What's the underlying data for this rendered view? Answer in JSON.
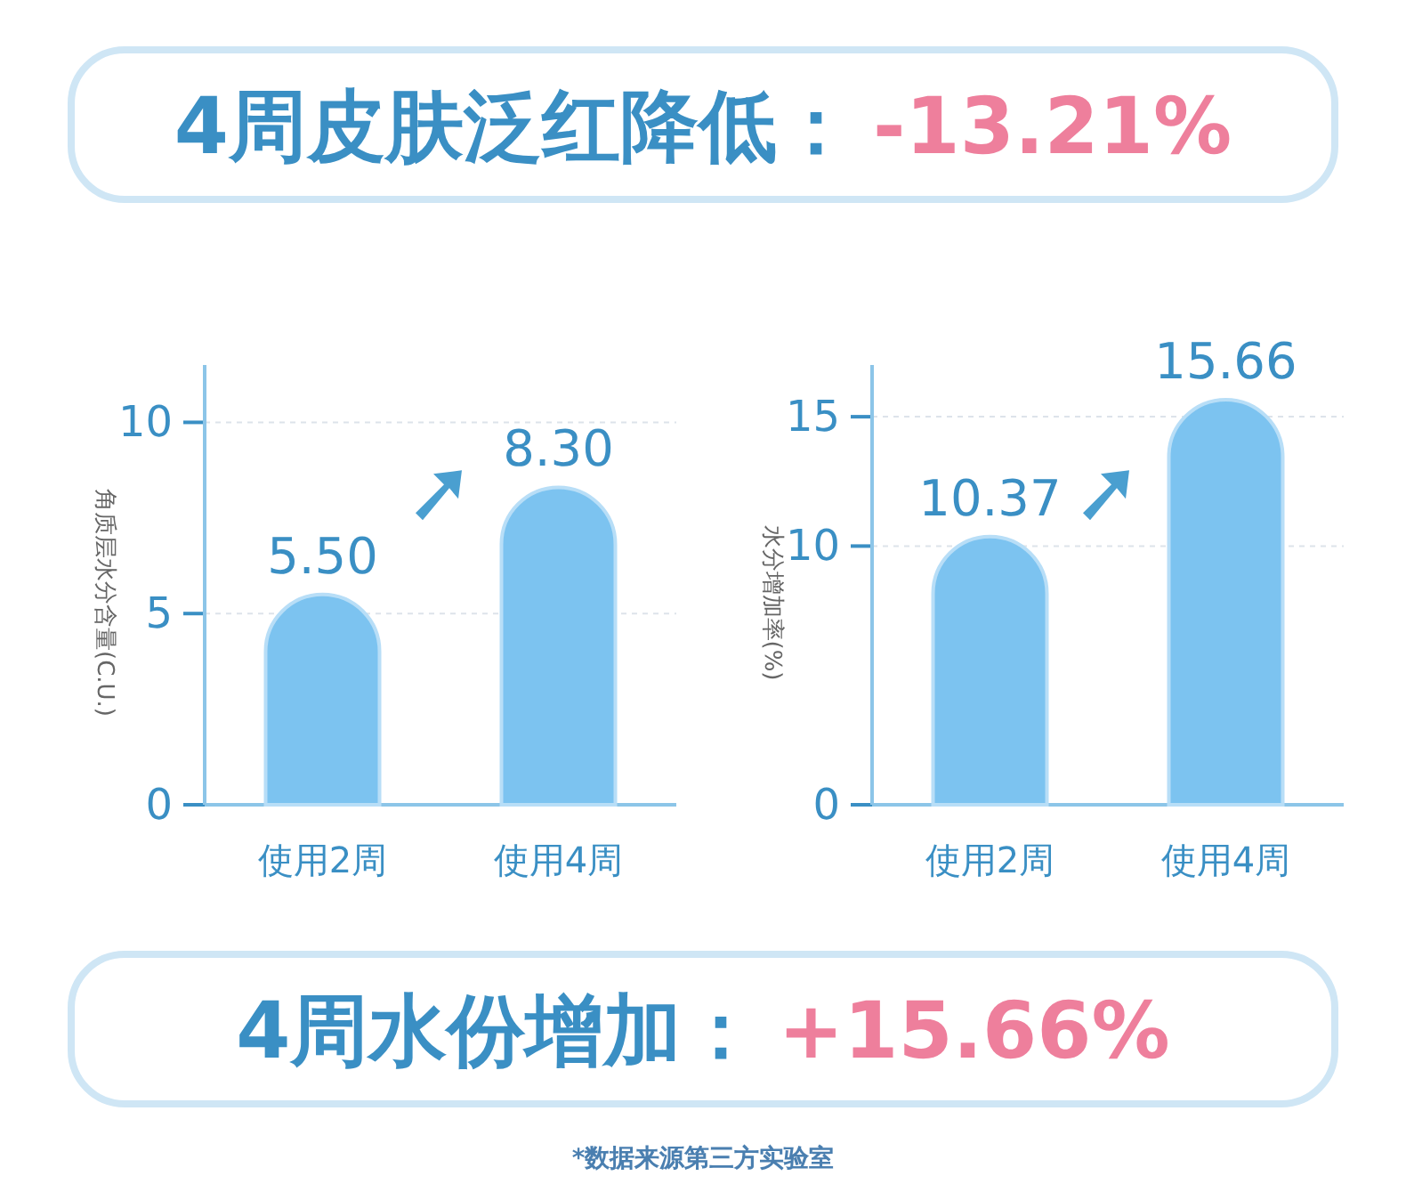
{
  "chart_data": [
    {
      "type": "bar",
      "title": "4周皮肤泛红降低：-13.21%",
      "ylabel": "角质层水分含量(C.U.)",
      "categories": [
        "使用2周",
        "使用4周"
      ],
      "values": [
        5.5,
        8.3
      ],
      "color": "#7cc3f0",
      "ylim": [
        0,
        11.5
      ],
      "yticks": [
        0,
        5,
        10
      ],
      "grid": "y",
      "value_labels": [
        "5.50",
        "8.30"
      ]
    },
    {
      "type": "bar",
      "ylabel": "水分增加率(%)",
      "categories": [
        "使用2周",
        "使用4周"
      ],
      "values": [
        10.37,
        15.66
      ],
      "color": "#7cc3f0",
      "ylim": [
        0,
        17
      ],
      "yticks": [
        0,
        10,
        15
      ],
      "grid": "y",
      "value_labels": [
        "10.37",
        "15.66"
      ],
      "annotations": [
        "4周水份增加：+15.66%",
        "*数据来源第三方实验室"
      ]
    }
  ]
}
